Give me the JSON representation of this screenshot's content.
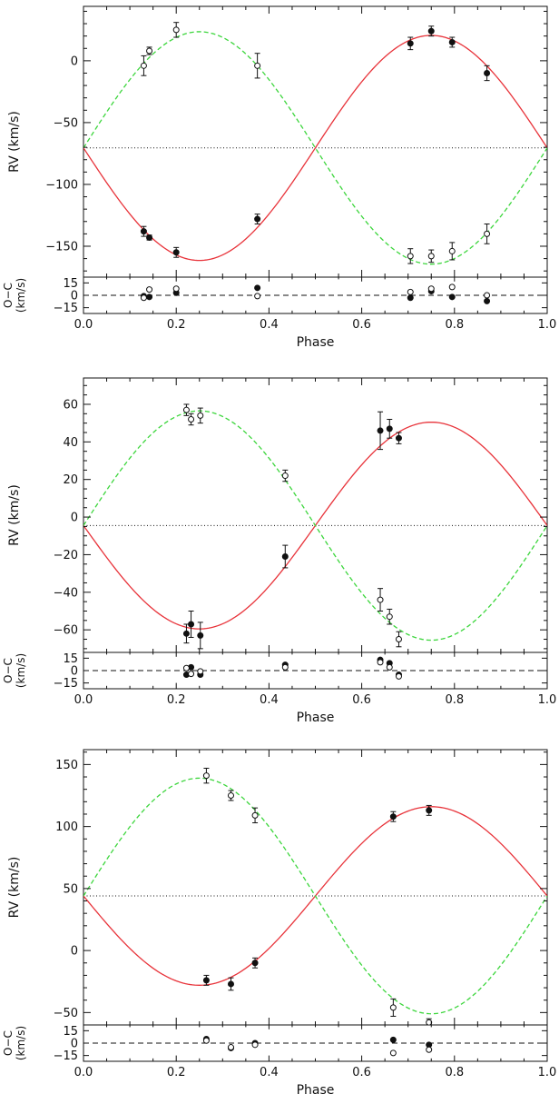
{
  "chart_data": [
    {
      "type": "scatter",
      "xlabel": "Phase",
      "ylabel": "RV  (km/s)",
      "residual_ylabel": [
        "O−C",
        "(km/s)"
      ],
      "xlim": [
        0.0,
        1.0
      ],
      "xticks": [
        0.0,
        0.2,
        0.4,
        0.6,
        0.8,
        1.0
      ],
      "xtick_labels": [
        "0.0",
        "0.2",
        "0.4",
        "0.6",
        "0.8",
        "1.0"
      ],
      "ylim": [
        -175,
        44
      ],
      "yticks": [
        -150,
        -100,
        -50,
        0
      ],
      "ytick_labels": [
        "−150",
        "−100",
        "−50",
        "0"
      ],
      "residual_ylim": [
        -22,
        22
      ],
      "residual_yticks": [
        -15,
        0,
        15
      ],
      "residual_ytick_labels": [
        "−15",
        "0",
        "15"
      ],
      "systemic_velocity": -70.5,
      "curves": [
        {
          "component": "primary",
          "style": "solid",
          "color": "#e8333a",
          "gamma": -70.5,
          "K": 91,
          "sign": -1
        },
        {
          "component": "secondary",
          "style": "dashed",
          "color": "#3dd63d",
          "gamma": -70.5,
          "K": 94,
          "sign": 1
        }
      ],
      "series": [
        {
          "component": "primary",
          "marker": "filled-circle",
          "points": [
            {
              "x": 0.13,
              "y": -138,
              "err": 4
            },
            {
              "x": 0.142,
              "y": -143,
              "err": 2
            },
            {
              "x": 0.2,
              "y": -155,
              "err": 4
            },
            {
              "x": 0.375,
              "y": -128,
              "err": 4
            },
            {
              "x": 0.705,
              "y": 14,
              "err": 5
            },
            {
              "x": 0.75,
              "y": 24,
              "err": 4
            },
            {
              "x": 0.795,
              "y": 15,
              "err": 4
            },
            {
              "x": 0.87,
              "y": -10,
              "err": 6
            }
          ],
          "residuals": [
            {
              "x": 0.13,
              "y": -1
            },
            {
              "x": 0.142,
              "y": -2
            },
            {
              "x": 0.2,
              "y": 3
            },
            {
              "x": 0.375,
              "y": 9
            },
            {
              "x": 0.705,
              "y": -3
            },
            {
              "x": 0.75,
              "y": 5
            },
            {
              "x": 0.795,
              "y": -2
            },
            {
              "x": 0.87,
              "y": -7
            }
          ]
        },
        {
          "component": "secondary",
          "marker": "open-circle",
          "points": [
            {
              "x": 0.13,
              "y": -4,
              "err": 8
            },
            {
              "x": 0.142,
              "y": 8,
              "err": 3
            },
            {
              "x": 0.2,
              "y": 25,
              "err": 6
            },
            {
              "x": 0.375,
              "y": -4,
              "err": 10
            },
            {
              "x": 0.705,
              "y": -158,
              "err": 6
            },
            {
              "x": 0.75,
              "y": -158,
              "err": 5
            },
            {
              "x": 0.795,
              "y": -154,
              "err": 7
            },
            {
              "x": 0.87,
              "y": -140,
              "err": 8
            }
          ],
          "residuals": [
            {
              "x": 0.13,
              "y": -3
            },
            {
              "x": 0.142,
              "y": 7
            },
            {
              "x": 0.2,
              "y": 8
            },
            {
              "x": 0.375,
              "y": -1
            },
            {
              "x": 0.705,
              "y": 4
            },
            {
              "x": 0.75,
              "y": 8
            },
            {
              "x": 0.795,
              "y": 10
            },
            {
              "x": 0.87,
              "y": 0
            }
          ]
        }
      ]
    },
    {
      "type": "scatter",
      "xlabel": "Phase",
      "ylabel": "RV  (km/s)",
      "residual_ylabel": [
        "O−C",
        "(km/s)"
      ],
      "xlim": [
        0.0,
        1.0
      ],
      "xticks": [
        0.0,
        0.2,
        0.4,
        0.6,
        0.8,
        1.0
      ],
      "xtick_labels": [
        "0.0",
        "0.2",
        "0.4",
        "0.6",
        "0.8",
        "1.0"
      ],
      "ylim": [
        -72,
        74
      ],
      "yticks": [
        -60,
        -40,
        -20,
        0,
        20,
        40,
        60
      ],
      "ytick_labels": [
        "−60",
        "−40",
        "−20",
        "0",
        "20",
        "40",
        "60"
      ],
      "residual_ylim": [
        -22,
        22
      ],
      "residual_yticks": [
        -15,
        0,
        15
      ],
      "residual_ytick_labels": [
        "−15",
        "0",
        "15"
      ],
      "systemic_velocity": -4.5,
      "curves": [
        {
          "component": "primary",
          "style": "solid",
          "color": "#e8333a",
          "gamma": -4.5,
          "K": 55,
          "sign": -1
        },
        {
          "component": "secondary",
          "style": "dashed",
          "color": "#3dd63d",
          "gamma": -4.5,
          "K": 61,
          "sign": 1
        }
      ],
      "series": [
        {
          "component": "primary",
          "marker": "filled-circle",
          "points": [
            {
              "x": 0.222,
              "y": -62,
              "err": 5
            },
            {
              "x": 0.232,
              "y": -57,
              "err": 7
            },
            {
              "x": 0.252,
              "y": -63,
              "err": 7
            },
            {
              "x": 0.435,
              "y": -21,
              "err": 6
            },
            {
              "x": 0.64,
              "y": 46,
              "err": 10
            },
            {
              "x": 0.66,
              "y": 47,
              "err": 5
            },
            {
              "x": 0.68,
              "y": 42,
              "err": 3
            }
          ],
          "residuals": [
            {
              "x": 0.222,
              "y": -5
            },
            {
              "x": 0.232,
              "y": 4
            },
            {
              "x": 0.252,
              "y": -5
            },
            {
              "x": 0.435,
              "y": 7
            },
            {
              "x": 0.64,
              "y": 13
            },
            {
              "x": 0.66,
              "y": 9
            },
            {
              "x": 0.68,
              "y": -5
            }
          ]
        },
        {
          "component": "secondary",
          "marker": "open-circle",
          "points": [
            {
              "x": 0.222,
              "y": 57,
              "err": 3
            },
            {
              "x": 0.232,
              "y": 52,
              "err": 3
            },
            {
              "x": 0.252,
              "y": 54,
              "err": 4
            },
            {
              "x": 0.435,
              "y": 22,
              "err": 3
            },
            {
              "x": 0.64,
              "y": -44,
              "err": 6
            },
            {
              "x": 0.66,
              "y": -53,
              "err": 4
            },
            {
              "x": 0.68,
              "y": -65,
              "err": 4
            }
          ],
          "residuals": [
            {
              "x": 0.222,
              "y": 3
            },
            {
              "x": 0.232,
              "y": -4
            },
            {
              "x": 0.252,
              "y": -1
            },
            {
              "x": 0.435,
              "y": 4
            },
            {
              "x": 0.64,
              "y": 10
            },
            {
              "x": 0.66,
              "y": 4
            },
            {
              "x": 0.68,
              "y": -7
            }
          ]
        }
      ]
    },
    {
      "type": "scatter",
      "xlabel": "Phase",
      "ylabel": "RV  (km/s)",
      "residual_ylabel": [
        "O−C",
        "(km/s)"
      ],
      "xlim": [
        0.0,
        1.0
      ],
      "xticks": [
        0.0,
        0.2,
        0.4,
        0.6,
        0.8,
        1.0
      ],
      "xtick_labels": [
        "0.0",
        "0.2",
        "0.4",
        "0.6",
        "0.8",
        "1.0"
      ],
      "ylim": [
        -60,
        162
      ],
      "yticks": [
        -50,
        0,
        50,
        100,
        150
      ],
      "ytick_labels": [
        "−50",
        "0",
        "50",
        "100",
        "150"
      ],
      "residual_ylim": [
        -22,
        22
      ],
      "residual_yticks": [
        -15,
        0,
        15
      ],
      "residual_ytick_labels": [
        "−15",
        "0",
        "15"
      ],
      "systemic_velocity": 44,
      "curves": [
        {
          "component": "primary",
          "style": "solid",
          "color": "#e8333a",
          "gamma": 44,
          "K": 72,
          "sign": -1
        },
        {
          "component": "secondary",
          "style": "dashed",
          "color": "#3dd63d",
          "gamma": 44,
          "K": 95,
          "sign": 1
        }
      ],
      "series": [
        {
          "component": "primary",
          "marker": "filled-circle",
          "points": [
            {
              "x": 0.265,
              "y": -24,
              "err": 4
            },
            {
              "x": 0.318,
              "y": -27,
              "err": 5
            },
            {
              "x": 0.37,
              "y": -10,
              "err": 4
            },
            {
              "x": 0.668,
              "y": 108,
              "err": 4
            },
            {
              "x": 0.745,
              "y": 113,
              "err": 4
            }
          ],
          "residuals": [
            {
              "x": 0.265,
              "y": 5
            },
            {
              "x": 0.318,
              "y": -6
            },
            {
              "x": 0.37,
              "y": 0
            },
            {
              "x": 0.668,
              "y": 4
            },
            {
              "x": 0.745,
              "y": -2
            }
          ]
        },
        {
          "component": "secondary",
          "marker": "open-circle",
          "points": [
            {
              "x": 0.265,
              "y": 141,
              "err": 6
            },
            {
              "x": 0.318,
              "y": 125,
              "err": 4
            },
            {
              "x": 0.37,
              "y": 109,
              "err": 6
            },
            {
              "x": 0.668,
              "y": -46,
              "err": 7
            },
            {
              "x": 0.745,
              "y": -58,
              "err": 3
            }
          ],
          "residuals": [
            {
              "x": 0.265,
              "y": 3
            },
            {
              "x": 0.318,
              "y": -5
            },
            {
              "x": 0.37,
              "y": -2
            },
            {
              "x": 0.668,
              "y": -12
            },
            {
              "x": 0.745,
              "y": -8
            }
          ]
        }
      ]
    }
  ]
}
